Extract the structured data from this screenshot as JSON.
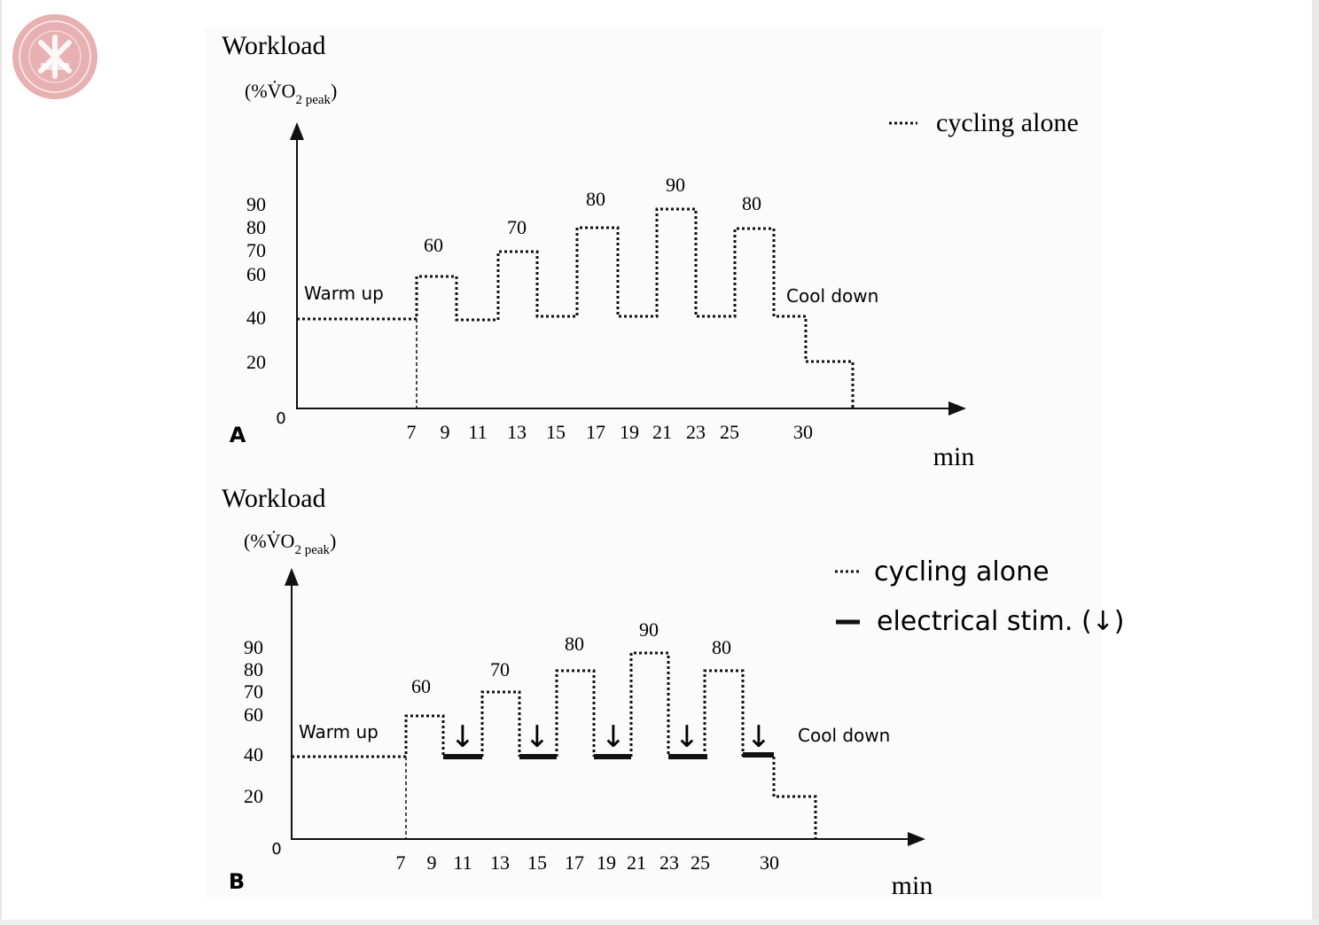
{
  "logo": {
    "color": "#e4a3a3"
  },
  "colors": {
    "line": "#111111",
    "logo": "#e4a3a3"
  },
  "panels": [
    {
      "id": "A",
      "panel_letter": "A",
      "workload_title": "Workload",
      "unit_label": "(%V̇O",
      "unit_sub": "2 peak",
      "unit_close": ")",
      "x_unit": "min",
      "origin": "0",
      "y_ticks": [
        "90",
        "80",
        "70",
        "60",
        "40",
        "20"
      ],
      "x_ticks": [
        "7",
        "9",
        "11",
        "13",
        "15",
        "17",
        "19",
        "21",
        "23",
        "25",
        "30"
      ],
      "warmup_label": "Warm up",
      "cooldown_label": "Cool down",
      "peak_labels": [
        "60",
        "70",
        "80",
        "90",
        "80"
      ],
      "legend": [
        {
          "style": "dotted",
          "label": "cycling alone"
        }
      ]
    },
    {
      "id": "B",
      "panel_letter": "B",
      "workload_title": "Workload",
      "unit_label": "(%V̇O",
      "unit_sub": "2 peak",
      "unit_close": ")",
      "x_unit": "min",
      "origin": "0",
      "y_ticks": [
        "90",
        "80",
        "70",
        "60",
        "40",
        "20"
      ],
      "x_ticks": [
        "7",
        "9",
        "11",
        "13",
        "15",
        "17",
        "19",
        "21",
        "23",
        "25",
        "30"
      ],
      "warmup_label": "Warm up",
      "cooldown_label": "Cool down",
      "peak_labels": [
        "60",
        "70",
        "80",
        "90",
        "80"
      ],
      "stim_arrow": "↓",
      "legend": [
        {
          "style": "dotted",
          "label": "cycling alone"
        },
        {
          "style": "solid",
          "label": "electrical stim. (↓)"
        }
      ]
    }
  ]
}
